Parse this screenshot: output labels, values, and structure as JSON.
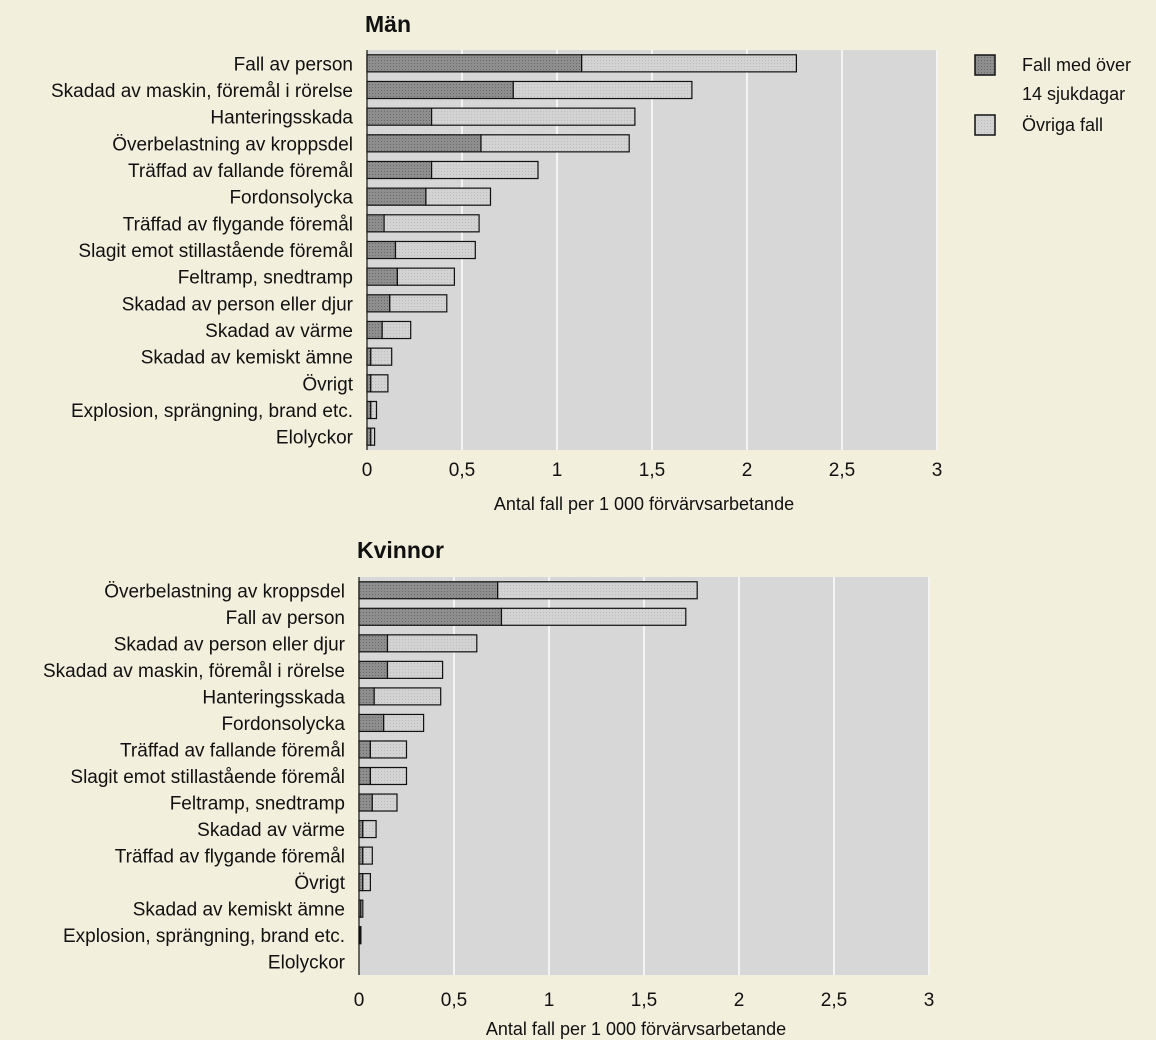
{
  "legend": {
    "severe_line1": "Fall med över",
    "severe_line2": "14 sjukdagar",
    "other": "Övriga fall"
  },
  "chart_data": [
    {
      "type": "bar",
      "orientation": "horizontal",
      "stacked": true,
      "title": "Män",
      "xlabel": "Antal fall per 1 000 förvärvsarbetande",
      "xlim": [
        0,
        3
      ],
      "xticks": [
        0,
        0.5,
        1,
        1.5,
        2,
        2.5,
        3
      ],
      "xtick_labels": [
        "0",
        "0,5",
        "1",
        "1,5",
        "2",
        "2,5",
        "3"
      ],
      "categories": [
        "Fall av person",
        "Skadad av maskin, föremål i rörelse",
        "Hanteringsskada",
        "Överbelastning av kroppsdel",
        "Träffad av fallande föremål",
        "Fordonsolycka",
        "Träffad av flygande föremål",
        "Slagit emot stillastående föremål",
        "Feltramp, snedtramp",
        "Skadad av person eller djur",
        "Skadad av värme",
        "Skadad av kemiskt ämne",
        "Övrigt",
        "Explosion, sprängning, brand etc.",
        "Elolyckor"
      ],
      "series": [
        {
          "name": "Fall med över 14 sjukdagar",
          "values": [
            1.13,
            0.77,
            0.34,
            0.6,
            0.34,
            0.31,
            0.09,
            0.15,
            0.16,
            0.12,
            0.08,
            0.02,
            0.02,
            0.02,
            0.02
          ]
        },
        {
          "name": "Övriga fall",
          "values": [
            1.13,
            0.94,
            1.07,
            0.78,
            0.56,
            0.34,
            0.5,
            0.42,
            0.3,
            0.3,
            0.15,
            0.11,
            0.09,
            0.03,
            0.02
          ]
        }
      ]
    },
    {
      "type": "bar",
      "orientation": "horizontal",
      "stacked": true,
      "title": "Kvinnor",
      "xlabel": "Antal fall per 1 000 förvärvsarbetande",
      "xlim": [
        0,
        3
      ],
      "xticks": [
        0,
        0.5,
        1,
        1.5,
        2,
        2.5,
        3
      ],
      "xtick_labels": [
        "0",
        "0,5",
        "1",
        "1,5",
        "2",
        "2,5",
        "3"
      ],
      "categories": [
        "Överbelastning av kroppsdel",
        "Fall av person",
        "Skadad av person eller djur",
        "Skadad av maskin, föremål i rörelse",
        "Hanteringsskada",
        "Fordonsolycka",
        "Träffad av fallande föremål",
        "Slagit emot stillastående föremål",
        "Feltramp, snedtramp",
        "Skadad av värme",
        "Träffad av flygande föremål",
        "Övrigt",
        "Skadad av kemiskt ämne",
        "Explosion, sprängning, brand etc.",
        "Elolyckor"
      ],
      "series": [
        {
          "name": "Fall med över 14 sjukdagar",
          "values": [
            0.73,
            0.75,
            0.15,
            0.15,
            0.08,
            0.13,
            0.06,
            0.06,
            0.07,
            0.02,
            0.02,
            0.02,
            0.01,
            0.005,
            0.0
          ]
        },
        {
          "name": "Övriga fall",
          "values": [
            1.05,
            0.97,
            0.47,
            0.29,
            0.35,
            0.21,
            0.19,
            0.19,
            0.13,
            0.07,
            0.05,
            0.04,
            0.01,
            0.005,
            0.0
          ]
        }
      ]
    }
  ],
  "colors": {
    "severe_fill": "#8e8e8e",
    "other_fill": "#d3d3d3",
    "plot_bg": "#d7d7d7",
    "grid": "#f4f4f4",
    "bar_stroke": "#111111"
  }
}
